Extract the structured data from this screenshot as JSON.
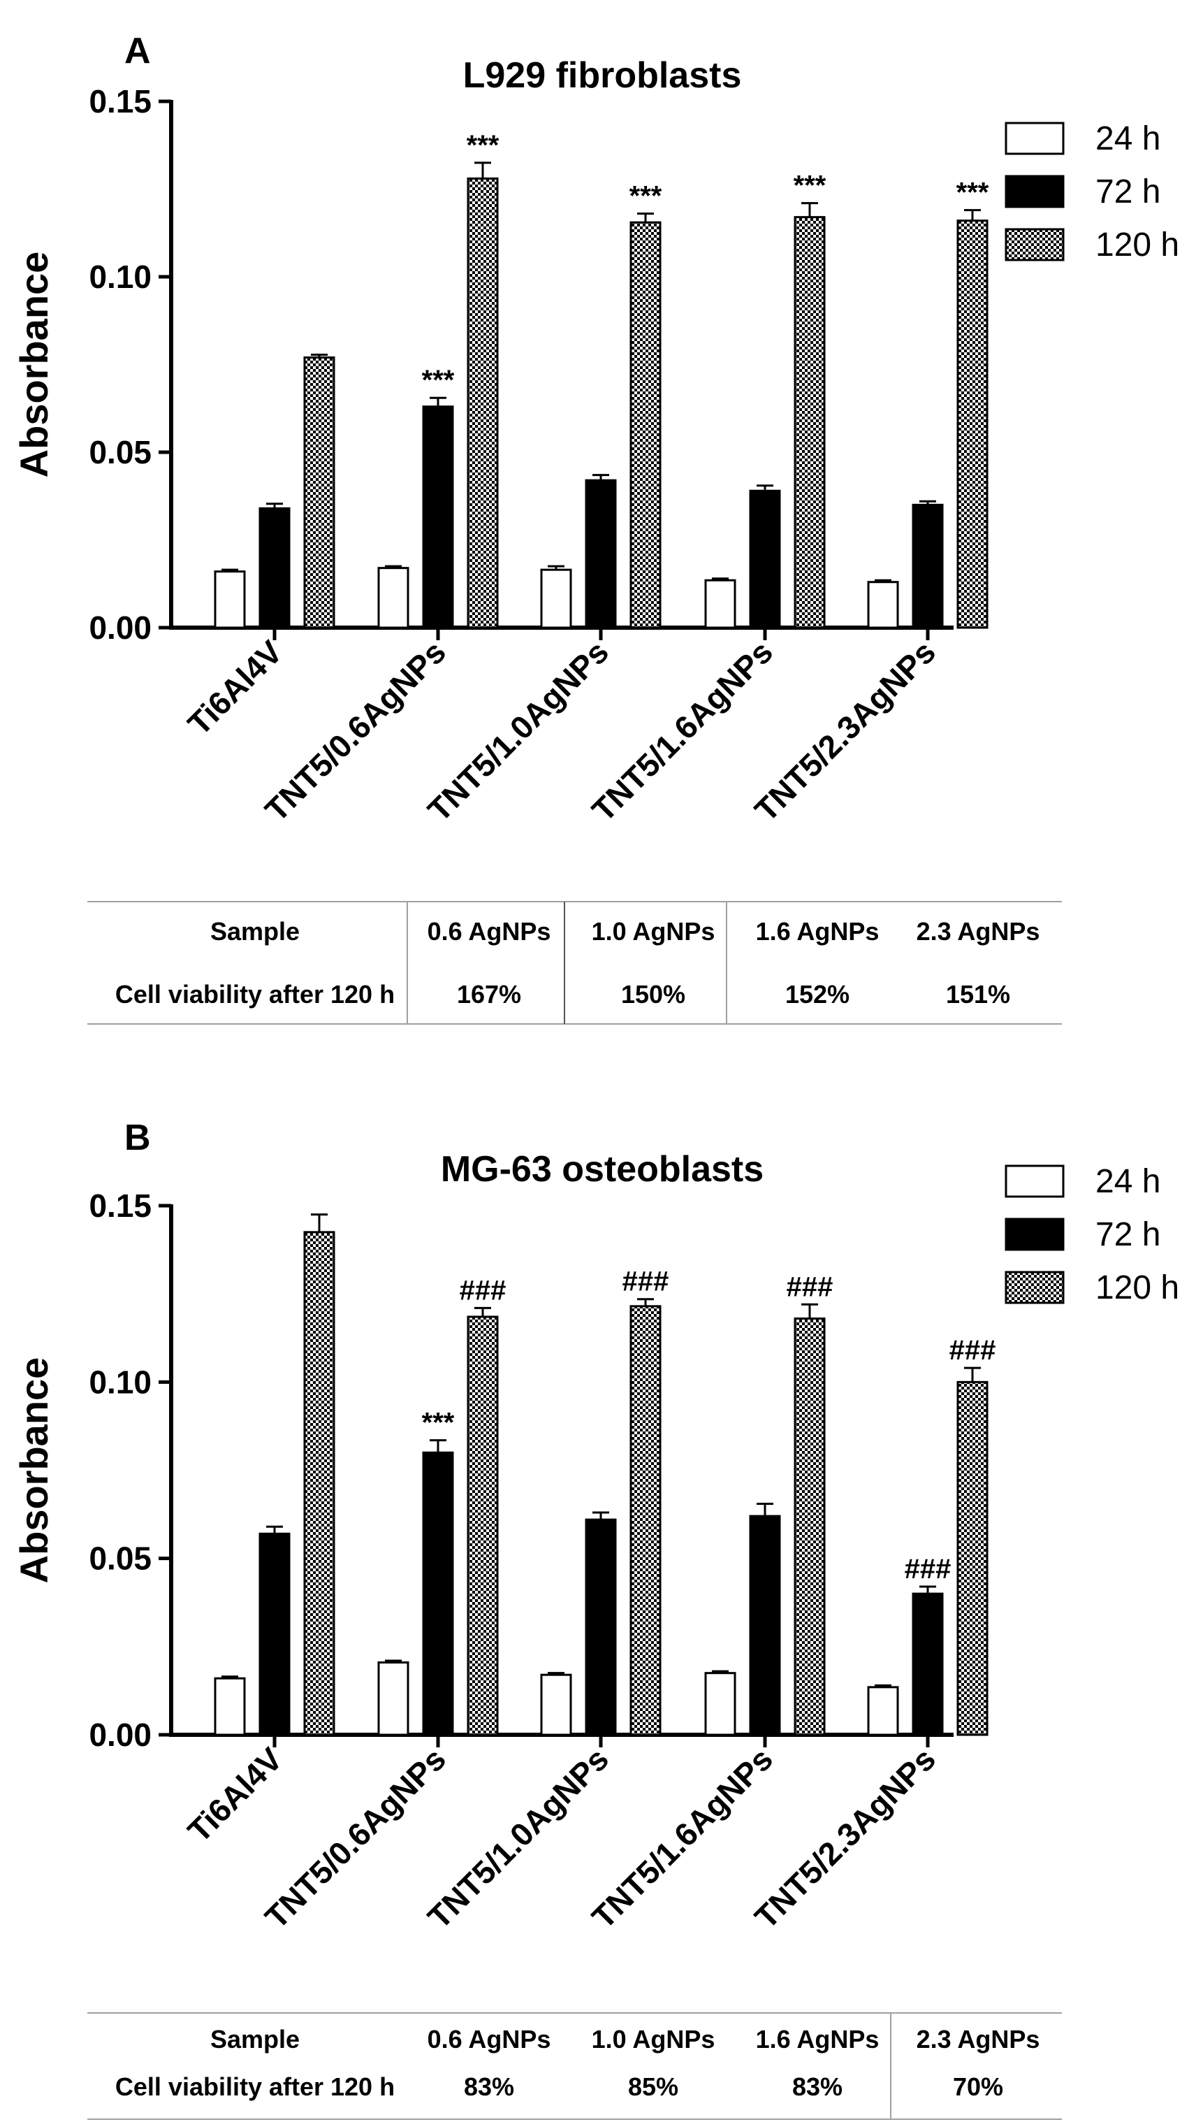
{
  "chart_data": [
    {
      "type": "bar",
      "panel": "A",
      "title": "L929 fibroblasts",
      "ylabel": "Absorbance",
      "xlabel": "",
      "ylim": [
        0,
        0.15
      ],
      "yticks": [
        "0.00",
        "0.05",
        "0.10",
        "0.15"
      ],
      "categories": [
        "Ti6Al4V",
        "TNT5/0.6AgNPs",
        "TNT5/1.0AgNPs",
        "TNT5/1.6AgNPs",
        "TNT5/2.3AgNPs"
      ],
      "series": [
        {
          "name": "24 h",
          "values": [
            0.016,
            0.017,
            0.0165,
            0.0135,
            0.013
          ],
          "errors": [
            0.0005,
            0.0005,
            0.001,
            0.0005,
            0.0005
          ],
          "labels": [
            "",
            "",
            "",
            "",
            ""
          ]
        },
        {
          "name": "72 h",
          "values": [
            0.034,
            0.063,
            0.042,
            0.039,
            0.035
          ],
          "errors": [
            0.0013,
            0.0025,
            0.0015,
            0.0015,
            0.001
          ],
          "labels": [
            "",
            "***",
            "",
            "",
            ""
          ]
        },
        {
          "name": "120 h",
          "values": [
            0.077,
            0.128,
            0.1155,
            0.117,
            0.116
          ],
          "errors": [
            0.0008,
            0.0045,
            0.0025,
            0.004,
            0.003
          ],
          "labels": [
            "",
            "***",
            "***",
            "***",
            "***"
          ]
        }
      ],
      "legend": [
        "24 h",
        "72 h",
        "120 h"
      ],
      "table": {
        "header_label": "Sample",
        "row_label": "Cell viability after 120 h",
        "columns": [
          "0.6 AgNPs",
          "1.0 AgNPs",
          "1.6 AgNPs",
          "2.3 AgNPs"
        ],
        "values": [
          "167%",
          "150%",
          "152%",
          "151%"
        ]
      }
    },
    {
      "type": "bar",
      "panel": "B",
      "title": "MG-63 osteoblasts",
      "ylabel": "Absorbance",
      "xlabel": "",
      "ylim": [
        0,
        0.15
      ],
      "yticks": [
        "0.00",
        "0.05",
        "0.10",
        "0.15"
      ],
      "categories": [
        "Ti6Al4V",
        "TNT5/0.6AgNPs",
        "TNT5/1.0AgNPs",
        "TNT5/1.6AgNPs",
        "TNT5/2.3AgNPs"
      ],
      "series": [
        {
          "name": "24 h",
          "values": [
            0.016,
            0.0205,
            0.017,
            0.0175,
            0.0135
          ],
          "errors": [
            0.0005,
            0.0005,
            0.0005,
            0.0005,
            0.0005
          ],
          "labels": [
            "",
            "",
            "",
            "",
            ""
          ]
        },
        {
          "name": "72 h",
          "values": [
            0.057,
            0.08,
            0.061,
            0.062,
            0.04
          ],
          "errors": [
            0.002,
            0.0035,
            0.002,
            0.0035,
            0.002
          ],
          "labels": [
            "",
            "***",
            "",
            "",
            "###"
          ]
        },
        {
          "name": "120 h",
          "values": [
            0.1425,
            0.1185,
            0.1215,
            0.118,
            0.1
          ],
          "errors": [
            0.005,
            0.0025,
            0.002,
            0.004,
            0.004
          ],
          "labels": [
            "",
            "###",
            "###",
            "###",
            "###"
          ]
        }
      ],
      "legend": [
        "24 h",
        "72 h",
        "120 h"
      ],
      "table": {
        "header_label": "Sample",
        "row_label": "Cell viability after 120 h",
        "columns": [
          "0.6 AgNPs",
          "1.0 AgNPs",
          "1.6 AgNPs",
          "2.3 AgNPs"
        ],
        "values": [
          "83%",
          "85%",
          "83%",
          "70%"
        ]
      }
    }
  ]
}
